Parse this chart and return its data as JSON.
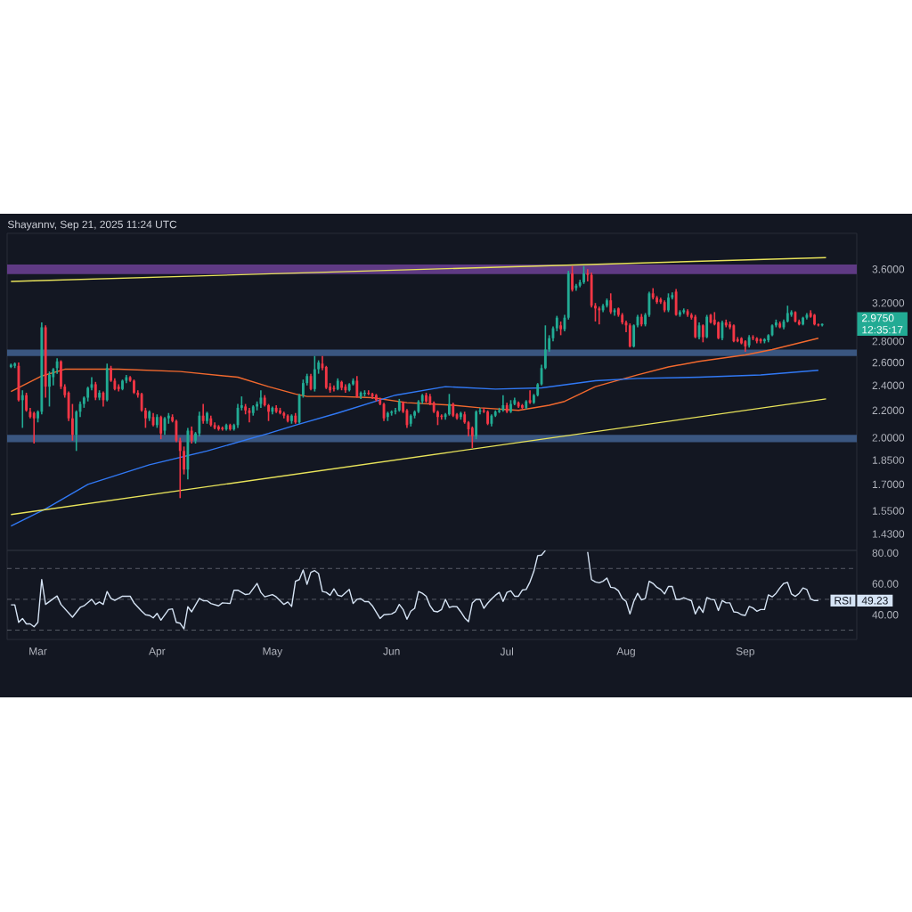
{
  "chart_data": [
    {
      "type": "candlestick",
      "title": "Shayannv, Sep 21, 2025 11:24 UTC",
      "x": [
        "2025-02-22",
        "2025-02-23",
        "2025-02-24",
        "2025-02-25",
        "2025-02-26",
        "2025-02-27",
        "2025-02-28",
        "2025-03-01",
        "2025-03-02",
        "2025-03-03",
        "2025-03-04",
        "2025-03-05",
        "2025-03-06",
        "2025-03-07",
        "2025-03-08",
        "2025-03-09",
        "2025-03-10",
        "2025-03-11",
        "2025-03-12",
        "2025-03-13",
        "2025-03-14",
        "2025-03-15",
        "2025-03-16",
        "2025-03-17",
        "2025-03-18",
        "2025-03-19",
        "2025-03-20",
        "2025-03-21",
        "2025-03-22",
        "2025-03-23",
        "2025-03-24",
        "2025-03-25",
        "2025-03-26",
        "2025-03-27",
        "2025-03-28",
        "2025-03-29",
        "2025-03-30",
        "2025-03-31",
        "2025-04-01",
        "2025-04-02",
        "2025-04-03",
        "2025-04-04",
        "2025-04-05",
        "2025-04-06",
        "2025-04-07",
        "2025-04-08",
        "2025-04-09",
        "2025-04-10",
        "2025-04-11",
        "2025-04-12",
        "2025-04-13",
        "2025-04-14",
        "2025-04-15",
        "2025-04-16",
        "2025-04-17",
        "2025-04-18",
        "2025-04-19",
        "2025-04-20",
        "2025-04-21",
        "2025-04-22",
        "2025-04-23",
        "2025-04-24",
        "2025-04-25",
        "2025-04-26",
        "2025-04-27",
        "2025-04-28",
        "2025-04-29",
        "2025-04-30",
        "2025-05-01",
        "2025-05-02",
        "2025-05-03",
        "2025-05-04",
        "2025-05-05",
        "2025-05-06",
        "2025-05-07",
        "2025-05-08",
        "2025-05-09",
        "2025-05-10",
        "2025-05-11",
        "2025-05-12",
        "2025-05-13",
        "2025-05-14",
        "2025-05-15",
        "2025-05-16",
        "2025-05-17",
        "2025-05-18",
        "2025-05-19",
        "2025-05-20",
        "2025-05-21",
        "2025-05-22",
        "2025-05-23",
        "2025-05-24",
        "2025-05-25",
        "2025-05-26",
        "2025-05-27",
        "2025-05-28",
        "2025-05-29",
        "2025-05-30",
        "2025-05-31",
        "2025-06-01",
        "2025-06-02",
        "2025-06-03",
        "2025-06-04",
        "2025-06-05",
        "2025-06-06",
        "2025-06-07",
        "2025-06-08",
        "2025-06-09",
        "2025-06-10",
        "2025-06-11",
        "2025-06-12",
        "2025-06-13",
        "2025-06-14",
        "2025-06-15",
        "2025-06-16",
        "2025-06-17",
        "2025-06-18",
        "2025-06-19",
        "2025-06-20",
        "2025-06-21",
        "2025-06-22",
        "2025-06-23",
        "2025-06-24",
        "2025-06-25",
        "2025-06-26",
        "2025-06-27",
        "2025-06-28",
        "2025-06-29",
        "2025-06-30",
        "2025-07-01",
        "2025-07-02",
        "2025-07-03",
        "2025-07-04",
        "2025-07-05",
        "2025-07-06",
        "2025-07-07",
        "2025-07-08",
        "2025-07-09",
        "2025-07-10",
        "2025-07-11",
        "2025-07-12",
        "2025-07-13",
        "2025-07-14",
        "2025-07-15",
        "2025-07-16",
        "2025-07-17",
        "2025-07-18",
        "2025-07-19",
        "2025-07-20",
        "2025-07-21",
        "2025-07-22",
        "2025-07-23",
        "2025-07-24",
        "2025-07-25",
        "2025-07-26",
        "2025-07-27",
        "2025-07-28",
        "2025-07-29",
        "2025-07-30",
        "2025-07-31",
        "2025-08-01",
        "2025-08-02",
        "2025-08-03",
        "2025-08-04",
        "2025-08-05",
        "2025-08-06",
        "2025-08-07",
        "2025-08-08",
        "2025-08-09",
        "2025-08-10",
        "2025-08-11",
        "2025-08-12",
        "2025-08-13",
        "2025-08-14",
        "2025-08-15",
        "2025-08-16",
        "2025-08-17",
        "2025-08-18",
        "2025-08-19",
        "2025-08-20",
        "2025-08-21",
        "2025-08-22",
        "2025-08-23",
        "2025-08-24",
        "2025-08-25",
        "2025-08-26",
        "2025-08-27",
        "2025-08-28",
        "2025-08-29",
        "2025-08-30",
        "2025-08-31",
        "2025-09-01",
        "2025-09-02",
        "2025-09-03",
        "2025-09-04",
        "2025-09-05",
        "2025-09-06",
        "2025-09-07",
        "2025-09-08",
        "2025-09-09",
        "2025-09-10",
        "2025-09-11",
        "2025-09-12",
        "2025-09-13",
        "2025-09-14",
        "2025-09-15",
        "2025-09-16",
        "2025-09-17",
        "2025-09-18",
        "2025-09-19",
        "2025-09-20",
        "2025-09-21"
      ],
      "ohlc": [
        [
          2.56,
          2.59,
          2.55,
          2.58
        ],
        [
          2.57,
          2.6,
          2.55,
          2.59
        ],
        [
          2.57,
          2.6,
          2.27,
          2.28
        ],
        [
          2.28,
          2.36,
          2.07,
          2.32
        ],
        [
          2.32,
          2.34,
          2.19,
          2.2
        ],
        [
          2.19,
          2.22,
          2.14,
          2.15
        ],
        [
          2.18,
          2.19,
          1.96,
          2.14
        ],
        [
          2.14,
          2.2,
          2.11,
          2.19
        ],
        [
          2.19,
          2.99,
          2.17,
          2.94
        ],
        [
          2.94,
          2.96,
          2.3,
          2.39
        ],
        [
          2.39,
          2.52,
          2.23,
          2.49
        ],
        [
          2.47,
          2.55,
          2.4,
          2.54
        ],
        [
          2.55,
          2.64,
          2.5,
          2.61
        ],
        [
          2.61,
          2.62,
          2.37,
          2.39
        ],
        [
          2.39,
          2.41,
          2.3,
          2.32
        ],
        [
          2.34,
          2.35,
          2.12,
          2.14
        ],
        [
          2.14,
          2.25,
          1.98,
          2.02
        ],
        [
          2.02,
          2.2,
          1.91,
          2.19
        ],
        [
          2.19,
          2.27,
          2.15,
          2.25
        ],
        [
          2.25,
          2.31,
          2.22,
          2.3
        ],
        [
          2.3,
          2.39,
          2.27,
          2.38
        ],
        [
          2.38,
          2.47,
          2.36,
          2.41
        ],
        [
          2.41,
          2.43,
          2.28,
          2.3
        ],
        [
          2.3,
          2.36,
          2.28,
          2.34
        ],
        [
          2.34,
          2.35,
          2.23,
          2.28
        ],
        [
          2.28,
          2.59,
          2.27,
          2.55
        ],
        [
          2.55,
          2.57,
          2.43,
          2.44
        ],
        [
          2.44,
          2.46,
          2.36,
          2.37
        ],
        [
          2.39,
          2.41,
          2.35,
          2.37
        ],
        [
          2.37,
          2.45,
          2.36,
          2.44
        ],
        [
          2.44,
          2.49,
          2.42,
          2.47
        ],
        [
          2.47,
          2.48,
          2.43,
          2.44
        ],
        [
          2.44,
          2.45,
          2.33,
          2.34
        ],
        [
          2.34,
          2.36,
          2.3,
          2.32
        ],
        [
          2.33,
          2.34,
          2.19,
          2.2
        ],
        [
          2.2,
          2.22,
          2.07,
          2.14
        ],
        [
          2.14,
          2.2,
          2.12,
          2.19
        ],
        [
          2.15,
          2.18,
          2.08,
          2.09
        ],
        [
          2.09,
          2.17,
          2.07,
          2.15
        ],
        [
          2.15,
          2.16,
          1.99,
          2.03
        ],
        [
          2.05,
          2.15,
          2.02,
          2.14
        ],
        [
          2.14,
          2.18,
          2.1,
          2.16
        ],
        [
          2.15,
          2.17,
          2.11,
          2.12
        ],
        [
          2.12,
          2.13,
          1.97,
          1.98
        ],
        [
          1.98,
          2.0,
          1.62,
          1.91
        ],
        [
          1.91,
          1.94,
          1.76,
          1.79
        ],
        [
          1.79,
          2.07,
          1.73,
          2.05
        ],
        [
          2.05,
          2.08,
          1.96,
          1.98
        ],
        [
          1.98,
          2.04,
          1.96,
          2.03
        ],
        [
          2.03,
          2.19,
          2.01,
          2.16
        ],
        [
          2.16,
          2.25,
          2.1,
          2.12
        ],
        [
          2.12,
          2.19,
          2.1,
          2.18
        ],
        [
          2.14,
          2.16,
          2.08,
          2.09
        ],
        [
          2.09,
          2.11,
          2.06,
          2.07
        ],
        [
          2.08,
          2.09,
          2.05,
          2.06
        ],
        [
          2.07,
          2.08,
          2.05,
          2.06
        ],
        [
          2.06,
          2.1,
          2.05,
          2.09
        ],
        [
          2.09,
          2.1,
          2.05,
          2.06
        ],
        [
          2.06,
          2.1,
          2.05,
          2.09
        ],
        [
          2.09,
          2.25,
          2.07,
          2.22
        ],
        [
          2.22,
          2.31,
          2.2,
          2.24
        ],
        [
          2.23,
          2.25,
          2.17,
          2.2
        ],
        [
          2.2,
          2.22,
          2.11,
          2.18
        ],
        [
          2.18,
          2.24,
          2.16,
          2.23
        ],
        [
          2.23,
          2.27,
          2.2,
          2.25
        ],
        [
          2.25,
          2.36,
          2.22,
          2.3
        ],
        [
          2.3,
          2.32,
          2.23,
          2.24
        ],
        [
          2.24,
          2.25,
          2.12,
          2.19
        ],
        [
          2.19,
          2.23,
          2.17,
          2.22
        ],
        [
          2.22,
          2.24,
          2.18,
          2.19
        ],
        [
          2.2,
          2.22,
          2.17,
          2.18
        ],
        [
          2.18,
          2.19,
          2.14,
          2.16
        ],
        [
          2.16,
          2.17,
          2.11,
          2.12
        ],
        [
          2.12,
          2.17,
          2.1,
          2.16
        ],
        [
          2.16,
          2.18,
          2.1,
          2.11
        ],
        [
          2.11,
          2.33,
          2.1,
          2.32
        ],
        [
          2.32,
          2.45,
          2.3,
          2.42
        ],
        [
          2.42,
          2.5,
          2.4,
          2.48
        ],
        [
          2.48,
          2.5,
          2.36,
          2.37
        ],
        [
          2.37,
          2.66,
          2.35,
          2.54
        ],
        [
          2.54,
          2.62,
          2.5,
          2.6
        ],
        [
          2.59,
          2.66,
          2.53,
          2.55
        ],
        [
          2.56,
          2.57,
          2.37,
          2.38
        ],
        [
          2.39,
          2.42,
          2.34,
          2.36
        ],
        [
          2.38,
          2.4,
          2.35,
          2.37
        ],
        [
          2.37,
          2.46,
          2.36,
          2.44
        ],
        [
          2.43,
          2.44,
          2.36,
          2.38
        ],
        [
          2.39,
          2.41,
          2.34,
          2.36
        ],
        [
          2.36,
          2.42,
          2.35,
          2.41
        ],
        [
          2.41,
          2.46,
          2.4,
          2.44
        ],
        [
          2.44,
          2.48,
          2.3,
          2.31
        ],
        [
          2.31,
          2.35,
          2.29,
          2.34
        ],
        [
          2.33,
          2.36,
          2.31,
          2.34
        ],
        [
          2.34,
          2.36,
          2.32,
          2.33
        ],
        [
          2.33,
          2.34,
          2.29,
          2.31
        ],
        [
          2.32,
          2.33,
          2.27,
          2.28
        ],
        [
          2.28,
          2.3,
          2.24,
          2.25
        ],
        [
          2.25,
          2.26,
          2.12,
          2.14
        ],
        [
          2.15,
          2.19,
          2.12,
          2.18
        ],
        [
          2.18,
          2.2,
          2.16,
          2.19
        ],
        [
          2.19,
          2.22,
          2.17,
          2.2
        ],
        [
          2.2,
          2.29,
          2.19,
          2.27
        ],
        [
          2.26,
          2.27,
          2.18,
          2.19
        ],
        [
          2.2,
          2.21,
          2.07,
          2.09
        ],
        [
          2.1,
          2.17,
          2.08,
          2.16
        ],
        [
          2.16,
          2.2,
          2.14,
          2.19
        ],
        [
          2.19,
          2.28,
          2.18,
          2.27
        ],
        [
          2.27,
          2.33,
          2.25,
          2.32
        ],
        [
          2.32,
          2.34,
          2.26,
          2.27
        ],
        [
          2.31,
          2.33,
          2.24,
          2.25
        ],
        [
          2.26,
          2.27,
          2.18,
          2.19
        ],
        [
          2.19,
          2.2,
          2.09,
          2.15
        ],
        [
          2.16,
          2.17,
          2.13,
          2.15
        ],
        [
          2.15,
          2.18,
          2.13,
          2.17
        ],
        [
          2.17,
          2.33,
          2.16,
          2.25
        ],
        [
          2.25,
          2.26,
          2.15,
          2.16
        ],
        [
          2.17,
          2.18,
          2.13,
          2.14
        ],
        [
          2.15,
          2.19,
          2.13,
          2.18
        ],
        [
          2.17,
          2.19,
          2.1,
          2.11
        ],
        [
          2.11,
          2.12,
          2.01,
          2.06
        ],
        [
          2.07,
          2.08,
          1.93,
          2.01
        ],
        [
          2.01,
          2.2,
          1.99,
          2.19
        ],
        [
          2.19,
          2.22,
          2.17,
          2.2
        ],
        [
          2.2,
          2.22,
          2.18,
          2.19
        ],
        [
          2.19,
          2.2,
          2.09,
          2.1
        ],
        [
          2.1,
          2.17,
          2.08,
          2.16
        ],
        [
          2.16,
          2.2,
          2.15,
          2.19
        ],
        [
          2.19,
          2.22,
          2.18,
          2.2
        ],
        [
          2.2,
          2.32,
          2.19,
          2.24
        ],
        [
          2.24,
          2.26,
          2.18,
          2.19
        ],
        [
          2.19,
          2.28,
          2.18,
          2.25
        ],
        [
          2.25,
          2.3,
          2.24,
          2.28
        ],
        [
          2.26,
          2.27,
          2.22,
          2.23
        ],
        [
          2.24,
          2.25,
          2.21,
          2.22
        ],
        [
          2.22,
          2.28,
          2.21,
          2.27
        ],
        [
          2.28,
          2.36,
          2.25,
          2.26
        ],
        [
          2.26,
          2.33,
          2.25,
          2.32
        ],
        [
          2.32,
          2.42,
          2.31,
          2.41
        ],
        [
          2.41,
          2.58,
          2.4,
          2.55
        ],
        [
          2.55,
          2.96,
          2.54,
          2.72
        ],
        [
          2.72,
          2.86,
          2.7,
          2.83
        ],
        [
          2.83,
          2.95,
          2.8,
          2.93
        ],
        [
          2.93,
          3.06,
          2.9,
          3.04
        ],
        [
          2.96,
          3.0,
          2.86,
          2.92
        ],
        [
          2.92,
          3.07,
          2.9,
          3.04
        ],
        [
          3.04,
          3.58,
          3.02,
          3.55
        ],
        [
          3.55,
          3.64,
          3.33,
          3.35
        ],
        [
          3.37,
          3.42,
          3.34,
          3.4
        ],
        [
          3.4,
          3.47,
          3.38,
          3.44
        ],
        [
          3.44,
          3.64,
          3.42,
          3.55
        ],
        [
          3.55,
          3.6,
          3.45,
          3.53
        ],
        [
          3.53,
          3.56,
          3.15,
          3.17
        ],
        [
          3.17,
          3.2,
          3.0,
          3.14
        ],
        [
          3.14,
          3.16,
          2.97,
          3.12
        ],
        [
          3.12,
          3.19,
          3.1,
          3.17
        ],
        [
          3.17,
          3.25,
          3.15,
          3.23
        ],
        [
          3.23,
          3.31,
          3.08,
          3.1
        ],
        [
          3.1,
          3.14,
          3.06,
          3.12
        ],
        [
          3.14,
          3.15,
          3.05,
          3.07
        ],
        [
          3.07,
          3.09,
          2.97,
          2.99
        ],
        [
          2.99,
          3.01,
          2.89,
          2.96
        ],
        [
          2.96,
          2.98,
          2.74,
          2.75
        ],
        [
          2.75,
          2.97,
          2.74,
          2.96
        ],
        [
          2.96,
          3.07,
          2.94,
          3.05
        ],
        [
          3.05,
          3.08,
          2.95,
          2.97
        ],
        [
          2.97,
          3.09,
          2.95,
          3.07
        ],
        [
          3.07,
          3.33,
          3.05,
          3.31
        ],
        [
          3.31,
          3.37,
          3.24,
          3.26
        ],
        [
          3.26,
          3.28,
          3.19,
          3.21
        ],
        [
          3.24,
          3.26,
          3.19,
          3.21
        ],
        [
          3.21,
          3.23,
          3.1,
          3.12
        ],
        [
          3.12,
          3.31,
          3.1,
          3.26
        ],
        [
          3.26,
          3.32,
          3.24,
          3.29
        ],
        [
          3.33,
          3.36,
          3.06,
          3.07
        ],
        [
          3.07,
          3.12,
          3.05,
          3.1
        ],
        [
          3.1,
          3.14,
          3.08,
          3.12
        ],
        [
          3.11,
          3.13,
          3.05,
          3.07
        ],
        [
          3.07,
          3.09,
          3.02,
          3.04
        ],
        [
          3.05,
          3.07,
          2.83,
          2.84
        ],
        [
          2.84,
          2.99,
          2.82,
          2.96
        ],
        [
          2.96,
          2.97,
          2.79,
          2.84
        ],
        [
          2.84,
          3.07,
          2.83,
          3.05
        ],
        [
          3.07,
          3.08,
          2.98,
          2.99
        ],
        [
          3.02,
          3.1,
          2.96,
          2.97
        ],
        [
          2.99,
          3.0,
          2.82,
          2.83
        ],
        [
          2.83,
          3.01,
          2.81,
          2.99
        ],
        [
          2.99,
          3.02,
          2.94,
          2.96
        ],
        [
          2.97,
          3.0,
          2.92,
          2.94
        ],
        [
          2.96,
          2.97,
          2.79,
          2.8
        ],
        [
          2.82,
          2.84,
          2.79,
          2.8
        ],
        [
          2.83,
          2.84,
          2.77,
          2.78
        ],
        [
          2.8,
          2.81,
          2.7,
          2.75
        ],
        [
          2.76,
          2.86,
          2.74,
          2.84
        ],
        [
          2.84,
          2.86,
          2.81,
          2.83
        ],
        [
          2.83,
          2.84,
          2.78,
          2.8
        ],
        [
          2.82,
          2.83,
          2.78,
          2.8
        ],
        [
          2.8,
          2.83,
          2.78,
          2.82
        ],
        [
          2.81,
          2.87,
          2.79,
          2.86
        ],
        [
          2.86,
          2.97,
          2.85,
          2.96
        ],
        [
          2.96,
          3.02,
          2.94,
          2.99
        ],
        [
          2.98,
          3.0,
          2.93,
          2.94
        ],
        [
          2.94,
          3.02,
          2.92,
          3.0
        ],
        [
          3.0,
          3.17,
          2.99,
          3.09
        ],
        [
          3.07,
          3.12,
          3.05,
          3.1
        ],
        [
          3.1,
          3.11,
          2.99,
          3.0
        ],
        [
          3.0,
          3.02,
          2.96,
          2.97
        ],
        [
          2.97,
          3.05,
          2.96,
          3.04
        ],
        [
          3.04,
          3.09,
          3.02,
          3.07
        ],
        [
          3.09,
          3.12,
          3.04,
          3.05
        ],
        [
          3.07,
          3.08,
          2.96,
          2.97
        ],
        [
          2.97,
          2.98,
          2.95,
          2.96
        ],
        [
          2.96,
          2.98,
          2.95,
          2.975
        ]
      ],
      "colors": [
        "#22ab94",
        "#22ab94",
        "#f23645",
        "#22ab94",
        "#f23645",
        "#f23645",
        "#f23645",
        "#22ab94",
        "#22ab94",
        "#f23645",
        "#22ab94",
        "#22ab94",
        "#22ab94",
        "#f23645",
        "#f23645",
        "#f23645",
        "#f23645",
        "#22ab94",
        "#22ab94",
        "#22ab94",
        "#22ab94",
        "#22ab94",
        "#f23645",
        "#22ab94",
        "#f23645",
        "#22ab94",
        "#f23645",
        "#f23645",
        "#f23645",
        "#22ab94",
        "#22ab94",
        "#f23645",
        "#f23645",
        "#f23645",
        "#f23645",
        "#f23645",
        "#22ab94",
        "#f23645",
        "#22ab94",
        "#f23645",
        "#22ab94",
        "#22ab94",
        "#f23645",
        "#f23645",
        "#f23645",
        "#f23645",
        "#22ab94",
        "#f23645",
        "#22ab94",
        "#22ab94",
        "#f23645",
        "#22ab94",
        "#f23645",
        "#f23645",
        "#f23645",
        "#f23645",
        "#22ab94",
        "#f23645",
        "#22ab94",
        "#22ab94",
        "#22ab94",
        "#f23645",
        "#f23645",
        "#22ab94",
        "#22ab94",
        "#22ab94",
        "#f23645",
        "#f23645",
        "#22ab94",
        "#f23645",
        "#f23645",
        "#f23645",
        "#f23645",
        "#22ab94",
        "#f23645",
        "#22ab94",
        "#22ab94",
        "#22ab94",
        "#f23645",
        "#22ab94",
        "#22ab94",
        "#f23645",
        "#f23645",
        "#f23645",
        "#f23645",
        "#22ab94",
        "#f23645",
        "#f23645",
        "#22ab94",
        "#22ab94",
        "#f23645",
        "#22ab94",
        "#22ab94",
        "#f23645",
        "#f23645",
        "#f23645",
        "#f23645",
        "#f23645",
        "#22ab94",
        "#22ab94",
        "#22ab94",
        "#22ab94",
        "#f23645",
        "#f23645",
        "#22ab94",
        "#22ab94",
        "#22ab94",
        "#22ab94",
        "#f23645",
        "#f23645",
        "#f23645",
        "#f23645",
        "#f23645",
        "#22ab94",
        "#22ab94",
        "#f23645",
        "#f23645",
        "#22ab94",
        "#f23645",
        "#f23645",
        "#f23645",
        "#22ab94",
        "#22ab94",
        "#f23645",
        "#f23645",
        "#22ab94",
        "#22ab94",
        "#22ab94",
        "#22ab94",
        "#f23645",
        "#22ab94",
        "#22ab94",
        "#f23645",
        "#f23645",
        "#22ab94",
        "#f23645",
        "#22ab94",
        "#22ab94",
        "#22ab94",
        "#22ab94",
        "#22ab94",
        "#22ab94",
        "#22ab94",
        "#f23645",
        "#22ab94",
        "#22ab94",
        "#f23645",
        "#22ab94",
        "#22ab94",
        "#22ab94",
        "#f23645",
        "#f23645",
        "#f23645",
        "#f23645",
        "#22ab94",
        "#22ab94",
        "#f23645",
        "#22ab94",
        "#f23645",
        "#f23645",
        "#f23645",
        "#f23645",
        "#22ab94",
        "#22ab94",
        "#f23645",
        "#22ab94",
        "#22ab94",
        "#f23645",
        "#f23645",
        "#f23645",
        "#f23645",
        "#22ab94",
        "#22ab94",
        "#f23645",
        "#22ab94",
        "#22ab94",
        "#f23645",
        "#f23645",
        "#f23645",
        "#22ab94",
        "#f23645",
        "#22ab94",
        "#f23645",
        "#f23645",
        "#f23645",
        "#22ab94",
        "#f23645",
        "#f23645",
        "#f23645",
        "#f23645",
        "#f23645",
        "#f23645",
        "#22ab94",
        "#f23645",
        "#f23645",
        "#f23645",
        "#22ab94",
        "#22ab94",
        "#22ab94",
        "#22ab94",
        "#f23645",
        "#22ab94",
        "#22ab94",
        "#22ab94",
        "#f23645",
        "#f23645",
        "#22ab94",
        "#22ab94",
        "#f23645",
        "#f23645",
        "#f23645",
        "#22ab94"
      ],
      "series": [
        {
          "type": "line",
          "color": "#f2692e",
          "x": [
            "2025-02-22",
            "2025-03-02",
            "2025-03-08",
            "2025-03-22",
            "2025-04-07",
            "2025-04-22",
            "2025-04-30",
            "2025-05-07",
            "2025-05-10",
            "2025-05-18",
            "2025-05-27",
            "2025-06-05",
            "2025-06-17",
            "2025-06-24",
            "2025-07-04",
            "2025-07-12",
            "2025-07-16",
            "2025-07-24",
            "2025-08-04",
            "2025-08-12",
            "2025-08-20",
            "2025-09-01",
            "2025-09-08",
            "2025-09-20"
          ],
          "values": [
            2.35,
            2.48,
            2.54,
            2.54,
            2.52,
            2.47,
            2.39,
            2.33,
            2.31,
            2.31,
            2.3,
            2.26,
            2.24,
            2.22,
            2.2,
            2.24,
            2.27,
            2.39,
            2.49,
            2.56,
            2.61,
            2.67,
            2.72,
            2.83
          ]
        },
        {
          "type": "line",
          "color": "#3179f5",
          "x": [
            "2025-02-22",
            "2025-03-03",
            "2025-03-14",
            "2025-03-30",
            "2025-04-14",
            "2025-04-30",
            "2025-05-07",
            "2025-05-18",
            "2025-06-02",
            "2025-06-15",
            "2025-06-28",
            "2025-07-10",
            "2025-07-17",
            "2025-07-24",
            "2025-08-04",
            "2025-08-20",
            "2025-09-05",
            "2025-09-20"
          ],
          "values": [
            1.47,
            1.56,
            1.7,
            1.82,
            1.91,
            2.03,
            2.09,
            2.18,
            2.32,
            2.39,
            2.37,
            2.38,
            2.41,
            2.44,
            2.46,
            2.47,
            2.49,
            2.53
          ]
        },
        {
          "type": "line",
          "color": "#e8e35a",
          "x": [
            "2025-02-22",
            "2025-09-22"
          ],
          "values": [
            3.45,
            3.75
          ]
        },
        {
          "type": "line",
          "color": "#e8e35a",
          "x": [
            "2025-02-22",
            "2025-09-22"
          ],
          "values": [
            1.53,
            2.29
          ]
        }
      ],
      "bands": [
        {
          "axis": "y",
          "from": 3.54,
          "to": 3.66,
          "color": "#5f3a84"
        },
        {
          "axis": "y",
          "from": 2.66,
          "to": 2.72,
          "color": "#3a5680"
        },
        {
          "axis": "y",
          "from": 1.97,
          "to": 2.02,
          "color": "#3a5680"
        }
      ],
      "xlim": [
        "2025-02-21",
        "2025-09-30"
      ],
      "ylim": [
        1.35,
        4.08
      ],
      "log": true,
      "yticks": [
        {
          "value": 1.43,
          "label": "1.4300"
        },
        {
          "value": 1.55,
          "label": "1.5500"
        },
        {
          "value": 1.7,
          "label": "1.7000"
        },
        {
          "value": 1.85,
          "label": "1.8500"
        },
        {
          "value": 2.0,
          "label": "2.0000"
        },
        {
          "value": 2.2,
          "label": "2.2000"
        },
        {
          "value": 2.4,
          "label": "2.4000"
        },
        {
          "value": 2.6,
          "label": "2.6000"
        },
        {
          "value": 2.8,
          "label": "2.8000"
        },
        {
          "value": 3.2,
          "label": "3.2000"
        },
        {
          "value": 3.6,
          "label": "3.6000"
        }
      ],
      "tick_labels": "y",
      "annotations": [
        "2.9750",
        "12:35:17"
      ]
    },
    {
      "type": "line",
      "x": [
        "2025-02-22",
        "2025-02-23",
        "2025-02-24",
        "2025-02-25",
        "2025-02-26",
        "2025-02-27",
        "2025-02-28",
        "2025-03-01",
        "2025-03-02",
        "2025-03-03",
        "2025-03-06",
        "2025-03-07",
        "2025-03-10",
        "2025-03-12",
        "2025-03-13",
        "2025-03-15",
        "2025-03-16",
        "2025-03-17",
        "2025-03-18",
        "2025-03-19",
        "2025-03-20",
        "2025-03-21",
        "2025-03-23",
        "2025-03-25",
        "2025-03-26",
        "2025-03-28",
        "2025-03-29",
        "2025-03-30",
        "2025-03-31",
        "2025-04-01",
        "2025-04-02",
        "2025-04-04",
        "2025-04-05",
        "2025-04-06",
        "2025-04-07",
        "2025-04-08",
        "2025-04-09",
        "2025-04-10",
        "2025-04-12",
        "2025-04-13",
        "2025-04-14",
        "2025-04-15",
        "2025-04-17",
        "2025-04-18",
        "2025-04-20",
        "2025-04-21",
        "2025-04-22",
        "2025-04-24",
        "2025-04-25",
        "2025-04-27",
        "2025-04-28",
        "2025-04-29",
        "2025-05-01",
        "2025-05-02",
        "2025-05-04",
        "2025-05-05",
        "2025-05-06",
        "2025-05-07",
        "2025-05-08",
        "2025-05-09",
        "2025-05-10",
        "2025-05-11",
        "2025-05-12",
        "2025-05-13",
        "2025-05-14",
        "2025-05-15",
        "2025-05-16",
        "2025-05-17",
        "2025-05-18",
        "2025-05-19",
        "2025-05-21",
        "2025-05-22",
        "2025-05-23",
        "2025-05-24",
        "2025-05-25",
        "2025-05-26",
        "2025-05-27",
        "2025-05-29",
        "2025-05-30",
        "2025-06-01",
        "2025-06-02",
        "2025-06-03",
        "2025-06-04",
        "2025-06-05",
        "2025-06-06",
        "2025-06-07",
        "2025-06-08",
        "2025-06-09",
        "2025-06-10",
        "2025-06-11",
        "2025-06-12",
        "2025-06-13",
        "2025-06-14",
        "2025-06-15",
        "2025-06-16",
        "2025-06-17",
        "2025-06-18",
        "2025-06-19",
        "2025-06-20",
        "2025-06-21",
        "2025-06-22",
        "2025-06-23",
        "2025-06-24",
        "2025-06-25",
        "2025-06-26",
        "2025-06-27",
        "2025-06-28",
        "2025-06-29",
        "2025-06-30",
        "2025-07-01",
        "2025-07-02",
        "2025-07-03",
        "2025-07-04",
        "2025-07-05",
        "2025-07-06",
        "2025-07-07",
        "2025-07-08",
        "2025-07-09",
        "2025-07-10",
        "2025-07-11",
        "2025-07-12",
        "2025-07-13",
        "2025-07-14",
        "2025-07-15",
        "2025-07-16",
        "2025-07-17",
        "2025-07-18",
        "2025-07-19",
        "2025-07-20",
        "2025-07-21",
        "2025-07-22",
        "2025-07-23",
        "2025-07-24",
        "2025-07-25",
        "2025-07-26",
        "2025-07-27",
        "2025-07-28",
        "2025-07-29",
        "2025-07-30",
        "2025-07-31",
        "2025-08-01",
        "2025-08-02",
        "2025-08-03",
        "2025-08-04",
        "2025-08-05",
        "2025-08-06",
        "2025-08-07",
        "2025-08-08",
        "2025-08-09",
        "2025-08-10",
        "2025-08-11",
        "2025-08-12",
        "2025-08-13",
        "2025-08-14",
        "2025-08-15",
        "2025-08-16",
        "2025-08-17",
        "2025-08-18",
        "2025-08-19",
        "2025-08-20",
        "2025-08-21",
        "2025-08-22",
        "2025-08-23",
        "2025-08-24",
        "2025-08-25",
        "2025-08-26",
        "2025-08-27",
        "2025-08-28",
        "2025-08-29",
        "2025-08-30",
        "2025-08-31",
        "2025-09-01",
        "2025-09-02",
        "2025-09-03",
        "2025-09-04",
        "2025-09-05",
        "2025-09-06",
        "2025-09-07",
        "2025-09-08",
        "2025-09-09",
        "2025-09-10",
        "2025-09-11",
        "2025-09-12",
        "2025-09-13",
        "2025-09-14",
        "2025-09-15",
        "2025-09-16",
        "2025-09-17",
        "2025-09-18",
        "2025-09-19",
        "2025-09-20"
      ],
      "series": [
        {
          "name": "RSI",
          "color": "#d6e4f5",
          "values": [
            46.4,
            46.4,
            35.1,
            37.6,
            34.1,
            34.1,
            32.2,
            35.1,
            62.8,
            46.7,
            52.2,
            46.7,
            38.4,
            44.8,
            45.8,
            50.0,
            46.7,
            48.3,
            46.7,
            55.1,
            50.6,
            49.3,
            52.0,
            52.0,
            47.7,
            42.3,
            40.0,
            39.6,
            38.0,
            40.9,
            36.5,
            43.4,
            43.8,
            35.1,
            34.5,
            30.9,
            45.2,
            41.9,
            50.6,
            49.1,
            49.1,
            47.3,
            45.8,
            47.7,
            47.3,
            55.9,
            55.9,
            53.1,
            53.5,
            60.3,
            54.5,
            51.6,
            53.1,
            51.6,
            46.7,
            48.3,
            45.4,
            61.7,
            62.8,
            69.0,
            59.7,
            67.5,
            68.6,
            66.7,
            55.1,
            54.5,
            52.6,
            56.8,
            52.6,
            52.0,
            56.4,
            47.3,
            50.0,
            50.4,
            48.5,
            48.5,
            45.8,
            37.6,
            40.0,
            40.5,
            41.9,
            46.7,
            43.4,
            37.1,
            42.3,
            44.2,
            55.1,
            53.9,
            52.0,
            45.8,
            42.3,
            41.9,
            43.4,
            50.0,
            44.8,
            45.4,
            45.2,
            41.9,
            38.0,
            35.5,
            47.7,
            50.0,
            50.0,
            44.2,
            47.5,
            50.2,
            52.6,
            54.5,
            48.7,
            54.5,
            55.5,
            52.0,
            52.0,
            56.0,
            56.4,
            61.3,
            68.1,
            78.3,
            78.7,
            81.6,
            null,
            null,
            null,
            null,
            null,
            null,
            null,
            null,
            null,
            null,
            80.7,
            62.8,
            61.3,
            60.7,
            61.7,
            63.8,
            57.8,
            57.4,
            55.5,
            50.6,
            48.7,
            40.5,
            48.7,
            53.9,
            49.6,
            50.6,
            61.7,
            60.3,
            57.8,
            56.4,
            53.5,
            58.3,
            58.3,
            50.0,
            50.0,
            51.0,
            50.0,
            49.1,
            40.5,
            45.4,
            41.5,
            51.2,
            50.0,
            49.6,
            42.8,
            49.2,
            47.7,
            47.7,
            41.9,
            41.5,
            40.0,
            39.6,
            45.4,
            44.4,
            42.3,
            43.4,
            43.4,
            52.9,
            51.6,
            53.9,
            57.4,
            60.3,
            60.9,
            53.5,
            51.9,
            53.9,
            57.4,
            56.4,
            50.2,
            49.2,
            49.2
          ]
        }
      ],
      "xlim": [
        "2025-02-21",
        "2025-09-30"
      ],
      "xticks": [
        {
          "value": "2025-03-01",
          "label": "Mar"
        },
        {
          "value": "2025-04-01",
          "label": "Apr"
        },
        {
          "value": "2025-05-01",
          "label": "May"
        },
        {
          "value": "2025-06-01",
          "label": "Jun"
        },
        {
          "value": "2025-07-01",
          "label": "Jul"
        },
        {
          "value": "2025-08-01",
          "label": "Aug"
        },
        {
          "value": "2025-09-01",
          "label": "Sep"
        }
      ],
      "ylim": [
        24,
        81.7
      ],
      "yticks": [
        {
          "value": 40,
          "label": "40.00"
        },
        {
          "value": 60,
          "label": "60.00"
        },
        {
          "value": 80,
          "label": "80.00"
        }
      ],
      "ref_lines": [
        {
          "axis": "y",
          "value": 70,
          "color": "#6a6d78",
          "line_style": "dashed"
        },
        {
          "axis": "y",
          "value": 50,
          "color": "#6a6d78",
          "line_style": "dashed"
        },
        {
          "axis": "y",
          "value": 30,
          "color": "#6a6d78",
          "line_style": "dashed"
        }
      ],
      "annotations": [
        "49.23"
      ]
    }
  ]
}
